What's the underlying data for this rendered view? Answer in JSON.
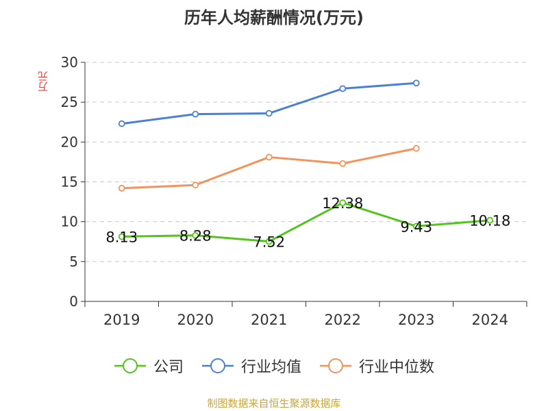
{
  "chart_data": {
    "type": "line",
    "title": "历年人均薪酬情况(万元)",
    "ylabel": "万元",
    "xlabel": "",
    "categories": [
      "2019",
      "2020",
      "2021",
      "2022",
      "2023",
      "2024"
    ],
    "ylim": [
      0,
      30
    ],
    "yticks": [
      "0",
      "5",
      "10",
      "15",
      "20",
      "25",
      "30"
    ],
    "grid": true,
    "legend_position": "bottom",
    "series": [
      {
        "name": "公司",
        "color": "#52c41a",
        "values": [
          8.13,
          8.28,
          7.52,
          12.38,
          9.43,
          10.18
        ],
        "labels": [
          "8.13",
          "8.28",
          "7.52",
          "12.38",
          "9.43",
          "10.18"
        ]
      },
      {
        "name": "行业均值",
        "color": "#4a7fd6",
        "values": [
          22.3,
          23.5,
          23.6,
          26.7,
          27.4,
          null
        ]
      },
      {
        "name": "行业中位数",
        "color": "#f4925a",
        "values": [
          14.2,
          14.6,
          18.1,
          17.3,
          19.2,
          null
        ]
      }
    ]
  },
  "source": "制图数据来自恒生聚源数据库"
}
